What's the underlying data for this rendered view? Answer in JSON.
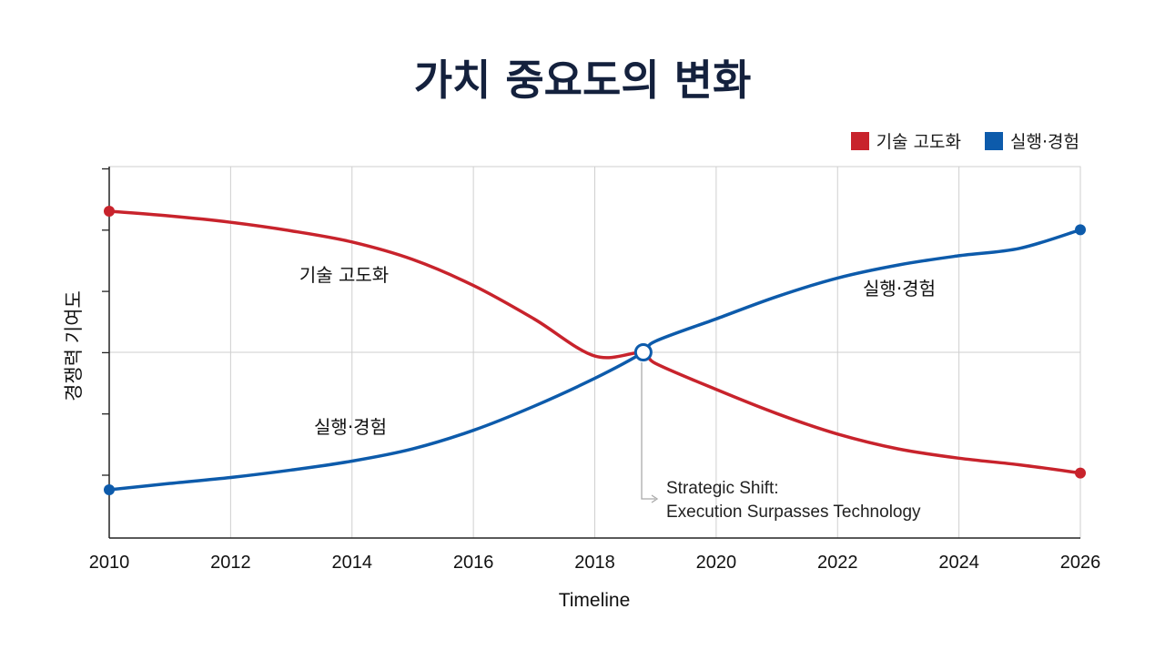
{
  "chart_data": {
    "type": "line",
    "title": "가치 중요도의 변화",
    "xlabel": "Timeline",
    "ylabel": "경쟁력 기여도",
    "x_ticks": [
      2010,
      2012,
      2014,
      2016,
      2018,
      2020,
      2022,
      2024,
      2026
    ],
    "xlim": [
      2010,
      2026
    ],
    "ylim": [
      0,
      100
    ],
    "grid": true,
    "legend_position": "top-right",
    "series": [
      {
        "name": "기술 고도화",
        "color": "#c8232c",
        "label": "기술 고도화",
        "x": [
          2010,
          2011,
          2012,
          2013,
          2014,
          2015,
          2016,
          2017,
          2018,
          2018.8,
          2019,
          2020,
          2021,
          2022,
          2023,
          2024,
          2025,
          2026
        ],
        "values": [
          88,
          86.7,
          85,
          82.7,
          79.7,
          75,
          68,
          59,
          49,
          50,
          47,
          40,
          33.5,
          28,
          24,
          21.5,
          19.7,
          17.5
        ]
      },
      {
        "name": "실행·경험",
        "color": "#0d5bab",
        "label": "실행·경험",
        "x": [
          2010,
          2011,
          2012,
          2013,
          2014,
          2015,
          2016,
          2017,
          2018,
          2018.8,
          2019,
          2020,
          2021,
          2022,
          2023,
          2024,
          2025,
          2026
        ],
        "values": [
          13,
          14.7,
          16.3,
          18.3,
          20.7,
          24,
          29,
          35.5,
          43,
          50,
          53,
          59,
          65,
          70,
          73.5,
          76,
          78,
          83
        ]
      }
    ],
    "crossover": {
      "x": 2018.8,
      "y": 50
    },
    "annotation": {
      "line1": "Strategic Shift:",
      "line2": "Execution Surpasses Technology"
    }
  }
}
